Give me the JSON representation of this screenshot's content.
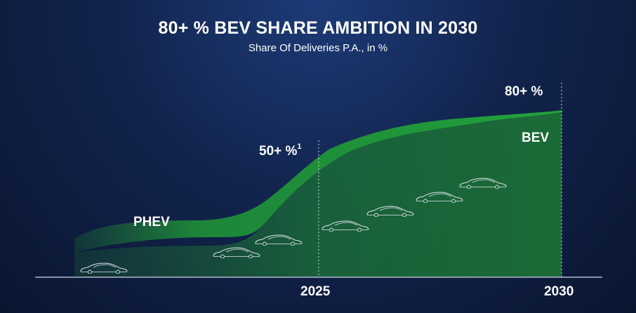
{
  "title": "80+ % BEV SHARE AMBITION IN 2030",
  "subtitle": "Share Of Deliveries P.A., in %",
  "colors": {
    "bev_fill": "#1b6b37",
    "bev_band": "#1f9a3a",
    "phev_band": "#1e7a37",
    "axis": "#b0b8c8",
    "guide": "#cfd6e3"
  },
  "chart_data": {
    "type": "area",
    "title": "80+ % BEV SHARE AMBITION IN 2030",
    "subtitle": "Share Of Deliveries P.A., in %",
    "x_ticks": [
      "2025",
      "2030"
    ],
    "series": [
      {
        "name": "PHEV"
      },
      {
        "name": "BEV"
      }
    ],
    "annotations": [
      {
        "x": "2025",
        "text": "50+ %",
        "superscript": "1"
      },
      {
        "x": "2030",
        "text": "80+ %"
      }
    ],
    "icons": [
      "car-silhouette-icon"
    ]
  }
}
